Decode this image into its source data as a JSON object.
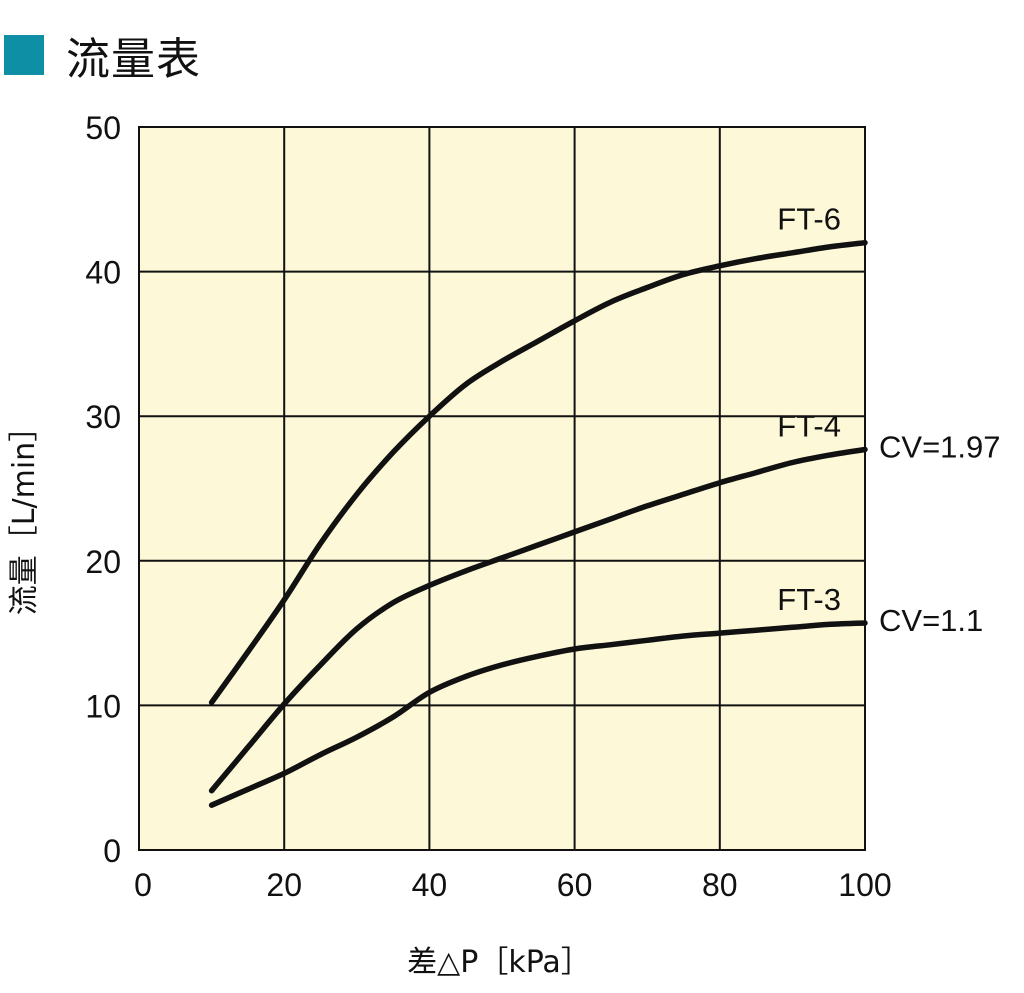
{
  "header": {
    "title": "流量表",
    "square_color": "#0f8fa6"
  },
  "chart_data": {
    "type": "line",
    "title": "流量表",
    "xlabel": "差△P［kPa］",
    "ylabel": "流量［L/min］",
    "xlim": [
      0,
      100
    ],
    "ylim": [
      0,
      50
    ],
    "xticks": [
      0,
      20,
      40,
      60,
      80,
      100
    ],
    "yticks": [
      0,
      10,
      20,
      30,
      40,
      50
    ],
    "grid": true,
    "plot_background": "#fdf9d8",
    "line_color": "#111111",
    "series": [
      {
        "name": "FT-6",
        "x": [
          10,
          15,
          20,
          25,
          30,
          35,
          40,
          45,
          50,
          55,
          60,
          65,
          70,
          75,
          80,
          85,
          90,
          95,
          100
        ],
        "y": [
          10.2,
          13.7,
          17.3,
          21.2,
          24.6,
          27.5,
          30.0,
          32.2,
          33.8,
          35.2,
          36.6,
          37.9,
          38.9,
          39.8,
          40.4,
          40.9,
          41.3,
          41.7,
          42.0
        ]
      },
      {
        "name": "FT-4",
        "cv_label": "CV=1.97",
        "x": [
          10,
          15,
          20,
          25,
          30,
          35,
          40,
          45,
          50,
          55,
          60,
          65,
          70,
          75,
          80,
          85,
          90,
          95,
          100
        ],
        "y": [
          4.1,
          7.1,
          10.1,
          12.8,
          15.3,
          17.1,
          18.3,
          19.3,
          20.2,
          21.1,
          22.0,
          22.9,
          23.8,
          24.6,
          25.4,
          26.1,
          26.8,
          27.3,
          27.7
        ]
      },
      {
        "name": "FT-3",
        "cv_label": "CV=1.1",
        "x": [
          10,
          15,
          20,
          25,
          30,
          35,
          40,
          45,
          50,
          55,
          60,
          65,
          70,
          75,
          80,
          85,
          90,
          95,
          100
        ],
        "y": [
          3.1,
          4.2,
          5.3,
          6.6,
          7.8,
          9.2,
          10.9,
          12.0,
          12.8,
          13.4,
          13.9,
          14.2,
          14.5,
          14.8,
          15.0,
          15.2,
          15.4,
          15.6,
          15.7
        ]
      }
    ]
  }
}
